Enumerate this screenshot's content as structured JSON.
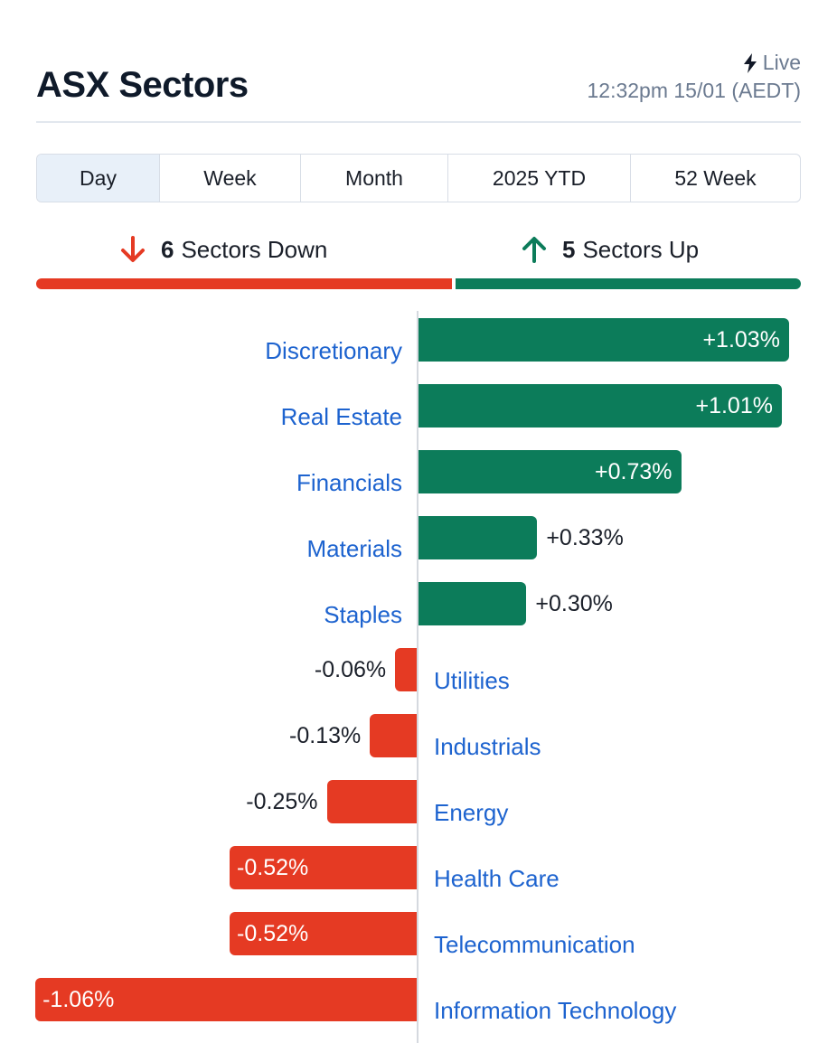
{
  "header": {
    "title": "ASX Sectors",
    "live_label": "Live",
    "timestamp": "12:32pm 15/01 (AEDT)"
  },
  "tabs": [
    {
      "label": "Day",
      "active": true
    },
    {
      "label": "Week",
      "active": false
    },
    {
      "label": "Month",
      "active": false
    },
    {
      "label": "2025 YTD",
      "active": false
    },
    {
      "label": "52 Week",
      "active": false
    }
  ],
  "summary": {
    "down_count": "6",
    "down_label": "Sectors Down",
    "up_count": "5",
    "up_label": "Sectors Up"
  },
  "colors": {
    "positive": "#0c7c5a",
    "negative": "#e53a23",
    "link": "#1d63cf"
  },
  "chart_data": {
    "type": "bar",
    "orientation": "horizontal-diverging",
    "categories": [
      "Discretionary",
      "Real Estate",
      "Financials",
      "Materials",
      "Staples",
      "Utilities",
      "Industrials",
      "Energy",
      "Health Care",
      "Telecommunication",
      "Information Technology"
    ],
    "values": [
      1.03,
      1.01,
      0.73,
      0.33,
      0.3,
      -0.06,
      -0.13,
      -0.25,
      -0.52,
      -0.52,
      -1.06
    ],
    "value_labels": [
      "+1.03%",
      "+1.01%",
      "+0.73%",
      "+0.33%",
      "+0.30%",
      "-0.06%",
      "-0.13%",
      "-0.25%",
      "-0.52%",
      "-0.52%",
      "-1.06%"
    ],
    "unit": "%"
  }
}
